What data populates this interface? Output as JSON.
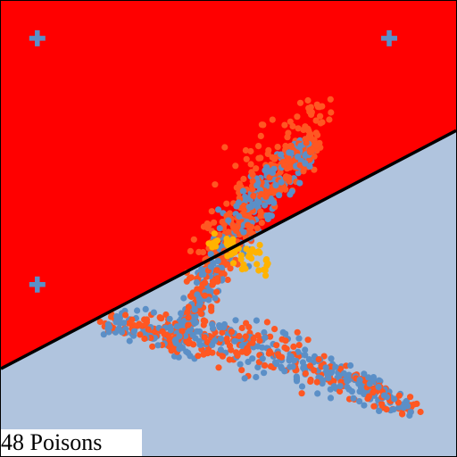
{
  "caption": "48 Poisons",
  "colors": {
    "region_a": "#ff0000",
    "region_b": "#b0c4de",
    "class_a_points": "#ff5722",
    "class_b_points": "#5b8fc7",
    "poison_points": "#ffb300",
    "boundary": "#000000",
    "frame": "#000000"
  },
  "chart_data": {
    "type": "scatter",
    "title": "",
    "xlabel": "",
    "ylabel": "",
    "xlim": [
      0,
      1
    ],
    "ylim": [
      0,
      1
    ],
    "grid": false,
    "legend": "none",
    "decision_boundary": {
      "slope": 0.523,
      "intercept": 0.192,
      "region_above": "class_a",
      "region_below": "class_b"
    },
    "markers": [
      {
        "name": "plus",
        "x": 0.08,
        "y": 0.918
      },
      {
        "name": "plus",
        "x": 0.853,
        "y": 0.918
      },
      {
        "name": "plus",
        "x": 0.08,
        "y": 0.377
      }
    ],
    "clusters": [
      {
        "name": "class_a",
        "color_key": "class_a_points",
        "n": 700,
        "seed": 11,
        "bands": [
          {
            "weight": 0.42,
            "x": [
              0.39,
              0.7
            ],
            "y": [
              0.24,
              0.69
            ],
            "ycurve": 0.26,
            "spread": 0.035
          },
          {
            "weight": 0.38,
            "x": [
              0.23,
              0.92
            ],
            "y": [
              0.29,
              0.1
            ],
            "ycurve": 0.13,
            "spread": 0.033
          },
          {
            "weight": 0.2,
            "x": [
              0.42,
              0.72
            ],
            "y": [
              0.38,
              0.77
            ],
            "ycurve": 0.22,
            "spread": 0.055
          }
        ]
      },
      {
        "name": "class_b",
        "color_key": "class_b_points",
        "n": 560,
        "seed": 23,
        "bands": [
          {
            "weight": 0.48,
            "x": [
              0.39,
              0.68
            ],
            "y": [
              0.24,
              0.67
            ],
            "ycurve": 0.26,
            "spread": 0.036
          },
          {
            "weight": 0.52,
            "x": [
              0.23,
              0.9
            ],
            "y": [
              0.29,
              0.11
            ],
            "ycurve": 0.13,
            "spread": 0.034
          }
        ]
      },
      {
        "name": "poisons",
        "color_key": "poison_points",
        "n": 48,
        "seed": 5,
        "bands": [
          {
            "weight": 1.0,
            "x": [
              0.455,
              0.59
            ],
            "y": [
              0.47,
              0.42
            ],
            "ycurve": 0.0,
            "spread": 0.022
          }
        ]
      }
    ]
  }
}
